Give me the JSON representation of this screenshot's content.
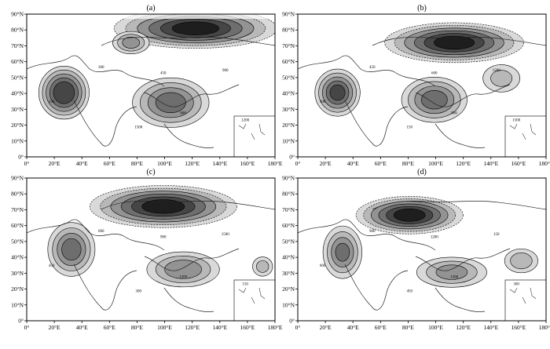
{
  "figure": {
    "panels": [
      {
        "id": "a",
        "label": "(a)"
      },
      {
        "id": "b",
        "label": "(b)"
      },
      {
        "id": "c",
        "label": "(c)"
      },
      {
        "id": "d",
        "label": "(d)"
      }
    ],
    "lon_ticks": [
      "0°",
      "20°E",
      "40°E",
      "60°E",
      "80°E",
      "100°E",
      "120°E",
      "140°E",
      "160°E",
      "180°E"
    ],
    "lat_ticks": [
      "0°",
      "10°N",
      "20°N",
      "30°N",
      "40°N",
      "50°N",
      "60°N",
      "70°N",
      "80°N",
      "90°N"
    ],
    "contour_labels": [
      "150",
      "300",
      "450",
      "600",
      "900",
      "1200",
      "1500"
    ]
  },
  "chart_data": {
    "type": "heatmap",
    "lon_range": [
      0,
      180
    ],
    "lat_range": [
      0,
      90
    ],
    "colors": {
      "low": "#ffffff",
      "high": "#111111",
      "contour": "#000000"
    }
  }
}
